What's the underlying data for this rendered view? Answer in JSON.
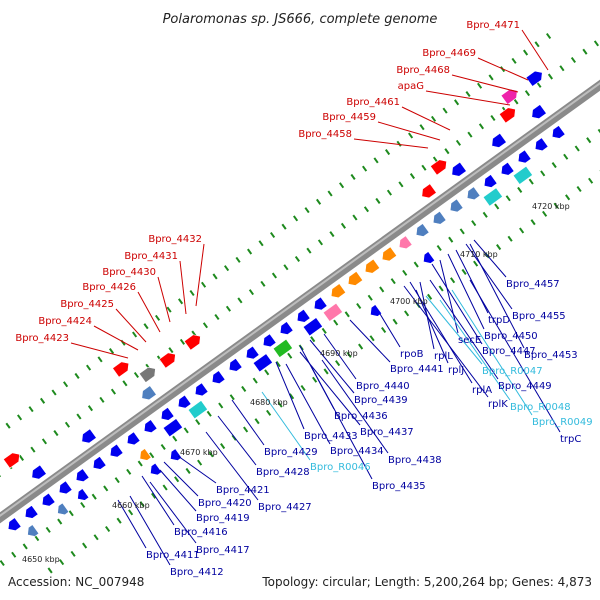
{
  "title": "Polaromonas sp. JS666, complete genome",
  "accession": "Accession: NC_007948",
  "summary": "Topology: circular; Length: 5,200,264 bp; Genes: 4,873",
  "colors": {
    "backbone": "#8a8a8a",
    "label_upper": "#cc0000",
    "label_lower": "#00009f",
    "label_rna": "#33bbdd",
    "gene_forward": "#ff0000",
    "gene_reverse": "#0000ee",
    "tick": "#1e8a1e",
    "orange": "#ff8a00",
    "cyan": "#22cccc",
    "green": "#22bb22",
    "pink": "#ff77aa",
    "magenta": "#ee22aa",
    "steel": "#4f7fbf",
    "grey": "#777777"
  },
  "kbp_markers": [
    "4650 kbp",
    "4660 kbp",
    "4670 kbp",
    "4680 kbp",
    "4690 kbp",
    "4700 kbp",
    "4710 kbp",
    "4720 kbp"
  ],
  "upper_labels": [
    "Bpro_4471",
    "Bpro_4469",
    "Bpro_4468",
    "apaG",
    "Bpro_4461",
    "Bpro_4459",
    "Bpro_4458",
    "Bpro_4432",
    "Bpro_4431",
    "Bpro_4430",
    "Bpro_4426",
    "Bpro_4425",
    "Bpro_4424",
    "Bpro_4423"
  ],
  "lower_labels": [
    "Bpro_4457",
    "Bpro_4455",
    "trpD",
    "Bpro_4450",
    "secE",
    "Bpro_4447",
    "Bpro_4453",
    "rpoB",
    "rplL",
    "Bpro_R0047",
    "rplJ",
    "Bpro_4449",
    "rplA",
    "rplK",
    "Bpro_R0048",
    "Bpro_R0049",
    "trpC",
    "Bpro_4441",
    "Bpro_4440",
    "Bpro_4439",
    "Bpro_4436",
    "Bpro_4437",
    "Bpro_4433",
    "Bpro_4434",
    "Bpro_4438",
    "Bpro_4429",
    "Bpro_R0046",
    "Bpro_4435",
    "Bpro_4428",
    "Bpro_4421",
    "Bpro_4427",
    "Bpro_4420",
    "Bpro_4419",
    "Bpro_4416",
    "Bpro_4417",
    "Bpro_4411",
    "Bpro_4412"
  ]
}
